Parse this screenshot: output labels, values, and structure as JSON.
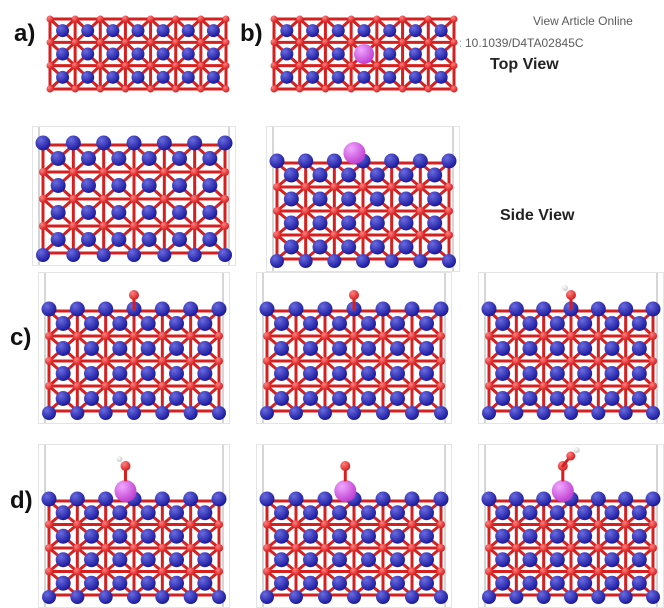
{
  "header": {
    "view_article": "View Article Online",
    "doi": "DOI: 10.1039/D4TA02845C"
  },
  "labels": {
    "a": "a)",
    "b": "b)",
    "c": "c)",
    "d": "d)",
    "top_view": "Top View",
    "side_view": "Side View"
  },
  "colors": {
    "substrate_atom": "#1a1a9e",
    "bridge_atom": "#d62020",
    "dopant_atom": "#c040d0",
    "adsorbate_oxygen": "#d62020",
    "adsorbate_hydrogen": "#ffffff",
    "background": "#ffffff"
  },
  "panels": [
    {
      "id": "a-top",
      "view": "top",
      "dopant": false,
      "adsorbate": "none"
    },
    {
      "id": "b-top",
      "view": "top",
      "dopant": true,
      "adsorbate": "none"
    },
    {
      "id": "a-side",
      "view": "side",
      "dopant": false,
      "adsorbate": "none"
    },
    {
      "id": "b-side",
      "view": "side",
      "dopant": true,
      "adsorbate": "none"
    },
    {
      "id": "c-1",
      "view": "side",
      "dopant": false,
      "adsorbate": "O"
    },
    {
      "id": "c-2",
      "view": "side",
      "dopant": false,
      "adsorbate": "O"
    },
    {
      "id": "c-3",
      "view": "side",
      "dopant": false,
      "adsorbate": "OH"
    },
    {
      "id": "d-1",
      "view": "side",
      "dopant": true,
      "adsorbate": "OH"
    },
    {
      "id": "d-2",
      "view": "side",
      "dopant": true,
      "adsorbate": "O"
    },
    {
      "id": "d-3",
      "view": "side",
      "dopant": true,
      "adsorbate": "OOH"
    }
  ]
}
